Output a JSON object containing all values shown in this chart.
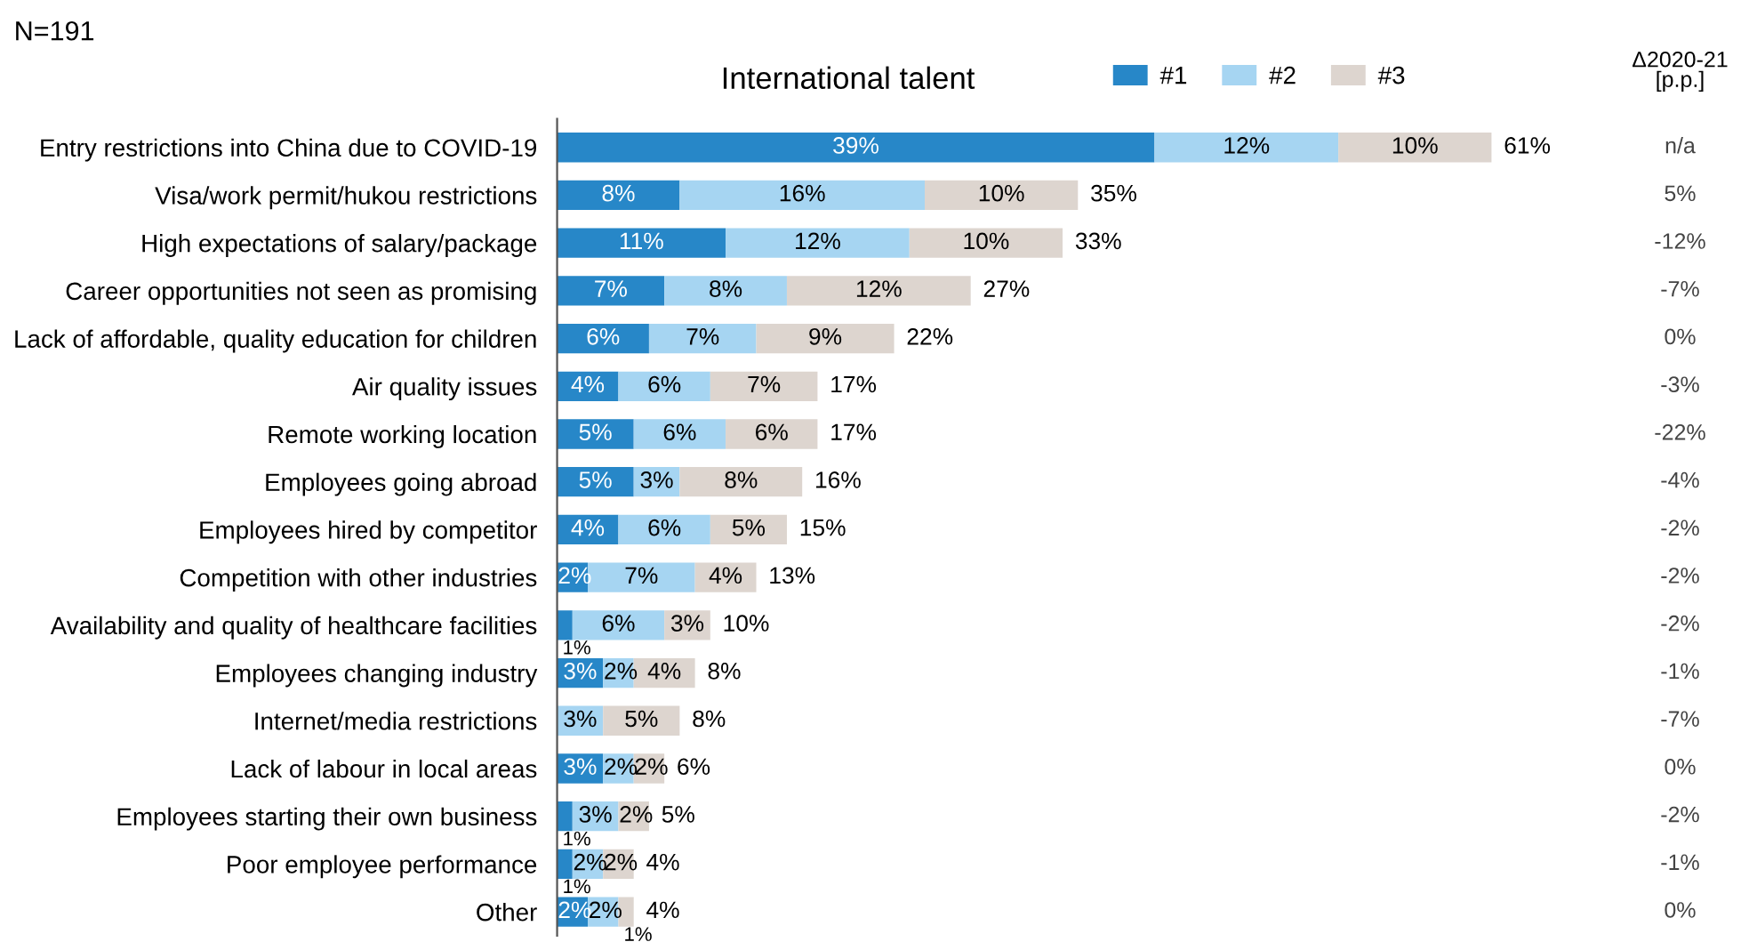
{
  "chart_data": {
    "type": "bar",
    "orientation": "horizontal",
    "stacked": true,
    "title": "International talent",
    "categories": [
      "Entry restrictions into China due to COVID-19",
      "Visa/work permit/hukou restrictions",
      "High expectations of salary/package",
      "Career opportunities not seen as promising",
      "Lack of affordable, quality education for children",
      "Air quality issues",
      "Remote working location",
      "Employees going abroad",
      "Employees hired by competitor",
      "Competition with other industries",
      "Availability and quality of healthcare facilities",
      "Employees changing industry",
      "Internet/media restrictions",
      "Lack of labour in local areas",
      "Employees starting their own business",
      "Poor employee performance",
      "Other"
    ],
    "series": [
      {
        "name": "#1",
        "color": "#2787c8",
        "values": [
          39,
          8,
          11,
          7,
          6,
          4,
          5,
          5,
          4,
          2,
          1,
          3,
          0,
          3,
          1,
          1,
          2
        ],
        "value_labels": [
          "39%",
          "8%",
          "11%",
          "7%",
          "6%",
          "4%",
          "5%",
          "5%",
          "4%",
          "2%",
          "1%",
          "3%",
          null,
          "3%",
          "1%",
          "1%",
          "2%"
        ]
      },
      {
        "name": "#2",
        "color": "#a6d5f2",
        "values": [
          12,
          16,
          12,
          8,
          7,
          6,
          6,
          3,
          6,
          7,
          6,
          2,
          3,
          2,
          3,
          2,
          2
        ],
        "value_labels": [
          "12%",
          "16%",
          "12%",
          "8%",
          "7%",
          "6%",
          "6%",
          "3%",
          "6%",
          "7%",
          "6%",
          "2%",
          "3%",
          "2%",
          "3%",
          "2%",
          "2%"
        ]
      },
      {
        "name": "#3",
        "color": "#ddd5cf",
        "values": [
          10,
          10,
          10,
          12,
          9,
          7,
          6,
          8,
          5,
          4,
          3,
          4,
          5,
          2,
          2,
          2,
          1
        ],
        "value_labels": [
          "10%",
          "10%",
          "10%",
          "12%",
          "9%",
          "7%",
          "6%",
          "8%",
          "5%",
          "4%",
          "3%",
          "4%",
          "5%",
          "2%",
          "2%",
          "2%",
          "1%"
        ]
      }
    ],
    "totals": [
      "61%",
      "35%",
      "33%",
      "27%",
      "22%",
      "17%",
      "17%",
      "16%",
      "15%",
      "13%",
      "10%",
      "8%",
      "8%",
      "6%",
      "5%",
      "4%",
      "4%"
    ],
    "legend": "top right",
    "annotations": [
      "N=191",
      "Δ2020-21\n[p.p.]",
      "n/a",
      "5%",
      "-12%",
      "-7%",
      "0%",
      "-3%",
      "-22%",
      "-4%",
      "-2%",
      "-2%",
      "-2%",
      "-1%",
      "-7%",
      "0%",
      "-2%",
      "-1%",
      "0%"
    ]
  }
}
